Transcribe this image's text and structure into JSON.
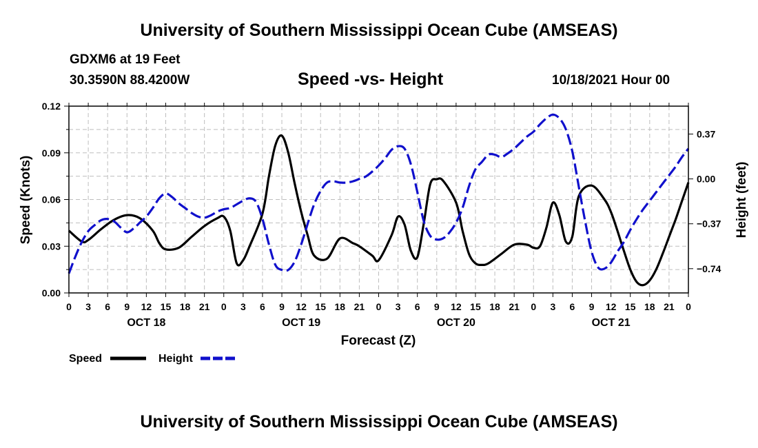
{
  "page": {
    "title_top": "University of Southern Mississippi Ocean Cube (AMSEAS)",
    "title_bottom": "University of Southern Mississippi Ocean Cube (AMSEAS)",
    "station": "GDXM6 at 19 Feet",
    "coords": "30.3590N  88.4200W",
    "subtitle": "Speed -vs- Height",
    "datetime": "10/18/2021 Hour 00"
  },
  "chart_data": {
    "type": "line",
    "title": "Speed -vs- Height",
    "xlabel": "Forecast (Z)",
    "ylabel_left": "Speed (Knots)",
    "ylabel_right": "Height (feet)",
    "x_range_hours": [
      0,
      96
    ],
    "x_ticks": [
      {
        "h": 0,
        "label": "0"
      },
      {
        "h": 3,
        "label": "3"
      },
      {
        "h": 6,
        "label": "6"
      },
      {
        "h": 9,
        "label": "9"
      },
      {
        "h": 12,
        "label": "12"
      },
      {
        "h": 15,
        "label": "15"
      },
      {
        "h": 18,
        "label": "18"
      },
      {
        "h": 21,
        "label": "21"
      },
      {
        "h": 24,
        "label": "0"
      },
      {
        "h": 27,
        "label": "3"
      },
      {
        "h": 30,
        "label": "6"
      },
      {
        "h": 33,
        "label": "9"
      },
      {
        "h": 36,
        "label": "12"
      },
      {
        "h": 39,
        "label": "15"
      },
      {
        "h": 42,
        "label": "18"
      },
      {
        "h": 45,
        "label": "21"
      },
      {
        "h": 48,
        "label": "0"
      },
      {
        "h": 51,
        "label": "3"
      },
      {
        "h": 54,
        "label": "6"
      },
      {
        "h": 57,
        "label": "9"
      },
      {
        "h": 60,
        "label": "12"
      },
      {
        "h": 63,
        "label": "15"
      },
      {
        "h": 66,
        "label": "18"
      },
      {
        "h": 69,
        "label": "21"
      },
      {
        "h": 72,
        "label": "0"
      },
      {
        "h": 75,
        "label": "3"
      },
      {
        "h": 78,
        "label": "6"
      },
      {
        "h": 81,
        "label": "9"
      },
      {
        "h": 84,
        "label": "12"
      },
      {
        "h": 87,
        "label": "15"
      },
      {
        "h": 90,
        "label": "18"
      },
      {
        "h": 93,
        "label": "21"
      },
      {
        "h": 96,
        "label": "0"
      }
    ],
    "day_labels": [
      {
        "h": 12,
        "label": "OCT 18"
      },
      {
        "h": 36,
        "label": "OCT 19"
      },
      {
        "h": 60,
        "label": "OCT 20"
      },
      {
        "h": 84,
        "label": "OCT 21"
      }
    ],
    "left_axis": {
      "min": 0.0,
      "max": 0.12,
      "ticks": [
        0.0,
        0.03,
        0.06,
        0.09,
        0.12
      ],
      "tick_labels": [
        "0.00",
        "0.03",
        "0.06",
        "0.09",
        "0.12"
      ]
    },
    "right_axis": {
      "min": -0.94,
      "max": 0.6,
      "ticks": [
        -0.74,
        -0.37,
        0.0,
        0.37
      ],
      "tick_labels": [
        "−0.74",
        "−0.37",
        "0.00",
        "0.37"
      ]
    },
    "legend": [
      {
        "label": "Speed",
        "color": "#000000",
        "style": "solid"
      },
      {
        "label": "Height",
        "color": "#1010cc",
        "style": "dashed"
      }
    ],
    "legend_position": "bottom-left",
    "series": [
      {
        "name": "Speed",
        "axis": "left",
        "color": "#000000",
        "x": [
          0,
          2,
          3,
          5,
          7,
          9,
          11,
          13,
          14,
          15,
          17,
          19,
          21,
          23,
          24,
          25,
          26,
          27,
          28,
          30,
          31,
          32,
          33,
          34,
          35,
          36,
          37,
          38,
          40,
          42,
          44,
          45,
          47,
          48,
          50,
          51,
          52,
          53,
          54,
          55,
          56,
          57,
          58,
          60,
          61,
          62,
          63,
          64,
          65,
          67,
          69,
          71,
          72,
          73,
          74,
          75,
          76,
          77,
          78,
          79,
          81,
          83,
          84,
          85,
          86,
          87,
          88,
          89,
          90,
          91,
          92,
          93,
          94,
          95,
          96
        ],
        "values": [
          0.04,
          0.033,
          0.034,
          0.041,
          0.047,
          0.05,
          0.048,
          0.04,
          0.032,
          0.028,
          0.029,
          0.036,
          0.043,
          0.048,
          0.049,
          0.04,
          0.019,
          0.021,
          0.03,
          0.051,
          0.075,
          0.095,
          0.101,
          0.09,
          0.07,
          0.052,
          0.037,
          0.024,
          0.022,
          0.035,
          0.032,
          0.03,
          0.024,
          0.021,
          0.037,
          0.049,
          0.044,
          0.027,
          0.023,
          0.045,
          0.07,
          0.073,
          0.072,
          0.058,
          0.04,
          0.025,
          0.019,
          0.018,
          0.019,
          0.025,
          0.031,
          0.031,
          0.029,
          0.03,
          0.042,
          0.058,
          0.05,
          0.033,
          0.036,
          0.062,
          0.069,
          0.06,
          0.052,
          0.04,
          0.027,
          0.015,
          0.007,
          0.005,
          0.008,
          0.015,
          0.025,
          0.036,
          0.047,
          0.059,
          0.071
        ]
      },
      {
        "name": "Height",
        "axis": "right",
        "color": "#1010cc",
        "x": [
          0,
          1,
          2,
          3,
          4,
          5,
          6,
          7,
          8,
          9,
          10,
          11,
          12,
          13,
          14,
          15,
          16,
          17,
          18,
          19,
          20,
          21,
          22,
          23,
          24,
          25,
          26,
          27,
          28,
          29,
          30,
          31,
          32,
          33,
          34,
          35,
          36,
          37,
          38,
          39,
          40,
          41,
          42,
          43,
          44,
          45,
          46,
          47,
          48,
          49,
          50,
          51,
          52,
          53,
          54,
          55,
          56,
          57,
          58,
          59,
          60,
          61,
          62,
          63,
          64,
          65,
          66,
          67,
          68,
          69,
          70,
          71,
          72,
          73,
          74,
          75,
          76,
          77,
          78,
          79,
          80,
          81,
          82,
          83,
          84,
          85,
          86,
          87,
          88,
          89,
          90,
          91,
          92,
          93,
          94,
          95,
          96
        ],
        "values": [
          -0.78,
          -0.64,
          -0.52,
          -0.43,
          -0.38,
          -0.34,
          -0.33,
          -0.35,
          -0.4,
          -0.44,
          -0.41,
          -0.36,
          -0.31,
          -0.24,
          -0.16,
          -0.12,
          -0.15,
          -0.2,
          -0.24,
          -0.28,
          -0.31,
          -0.32,
          -0.3,
          -0.27,
          -0.25,
          -0.24,
          -0.21,
          -0.18,
          -0.16,
          -0.19,
          -0.33,
          -0.54,
          -0.71,
          -0.75,
          -0.75,
          -0.68,
          -0.54,
          -0.37,
          -0.21,
          -0.1,
          -0.03,
          -0.02,
          -0.03,
          -0.03,
          -0.02,
          0.0,
          0.02,
          0.06,
          0.11,
          0.17,
          0.24,
          0.27,
          0.25,
          0.12,
          -0.11,
          -0.35,
          -0.47,
          -0.5,
          -0.49,
          -0.44,
          -0.36,
          -0.24,
          -0.06,
          0.08,
          0.14,
          0.2,
          0.2,
          0.18,
          0.21,
          0.25,
          0.3,
          0.35,
          0.39,
          0.45,
          0.5,
          0.53,
          0.5,
          0.41,
          0.23,
          -0.06,
          -0.35,
          -0.6,
          -0.73,
          -0.74,
          -0.69,
          -0.6,
          -0.52,
          -0.42,
          -0.33,
          -0.25,
          -0.18,
          -0.11,
          -0.04,
          0.03,
          0.1,
          0.18,
          0.25
        ]
      }
    ]
  }
}
